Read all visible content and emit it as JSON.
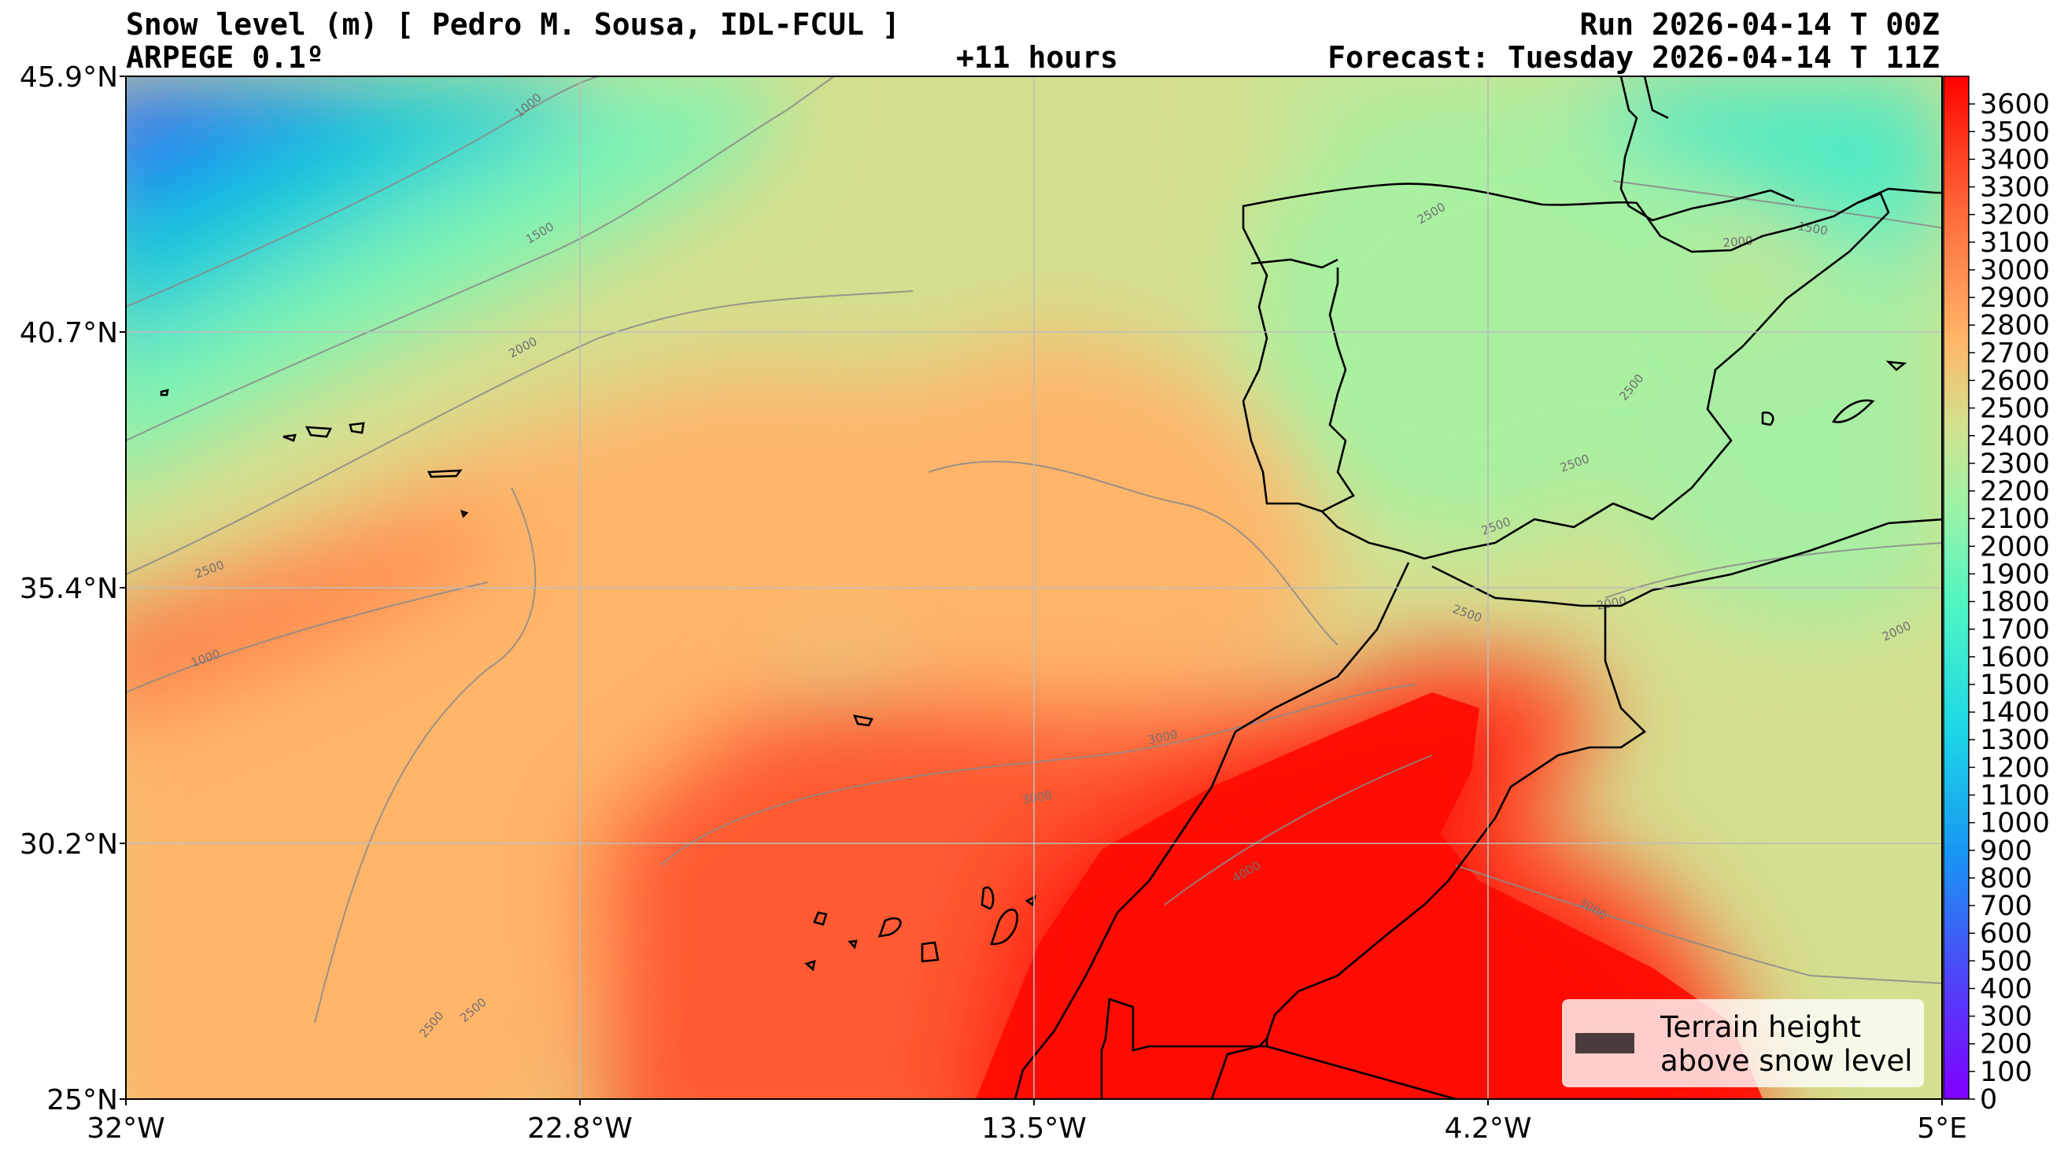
{
  "header": {
    "title": "Snow level (m) [ Pedro M. Sousa, IDL-FCUL ]",
    "model": "ARPEGE 0.1º",
    "lead": "+11 hours",
    "run": "Run 2026-04-14 T 00Z",
    "forecast": "Forecast: Tuesday 2026-04-14 T 11Z"
  },
  "chart_data": {
    "type": "heatmap",
    "title": "Snow level (m)",
    "x_ticks": [
      "32°W",
      "22.8°W",
      "13.5°W",
      "4.2°W",
      "5°E"
    ],
    "y_ticks": [
      "45.9°N",
      "40.7°N",
      "35.4°N",
      "30.2°N",
      "25°N"
    ],
    "xlim": [
      -32,
      5
    ],
    "ylim": [
      25,
      45.9
    ],
    "grid": true,
    "colorbar": {
      "min": 0,
      "max": 3700,
      "step": 100,
      "tick_labels": [
        "0",
        "100",
        "200",
        "300",
        "400",
        "500",
        "600",
        "700",
        "800",
        "900",
        "1000",
        "1100",
        "1200",
        "1300",
        "1400",
        "1500",
        "1600",
        "1700",
        "1800",
        "1900",
        "2000",
        "2100",
        "2200",
        "2300",
        "2400",
        "2500",
        "2600",
        "2700",
        "2800",
        "2900",
        "3000",
        "3100",
        "3200",
        "3300",
        "3400",
        "3500",
        "3600"
      ],
      "colormap": "rainbow"
    },
    "contour_labels": [
      "1000",
      "1500",
      "2000",
      "2500",
      "3000",
      "4000"
    ],
    "legend": {
      "label": "Terrain height\nabove snow level",
      "color": "#4a3c3c",
      "position": "bottom-right"
    }
  }
}
